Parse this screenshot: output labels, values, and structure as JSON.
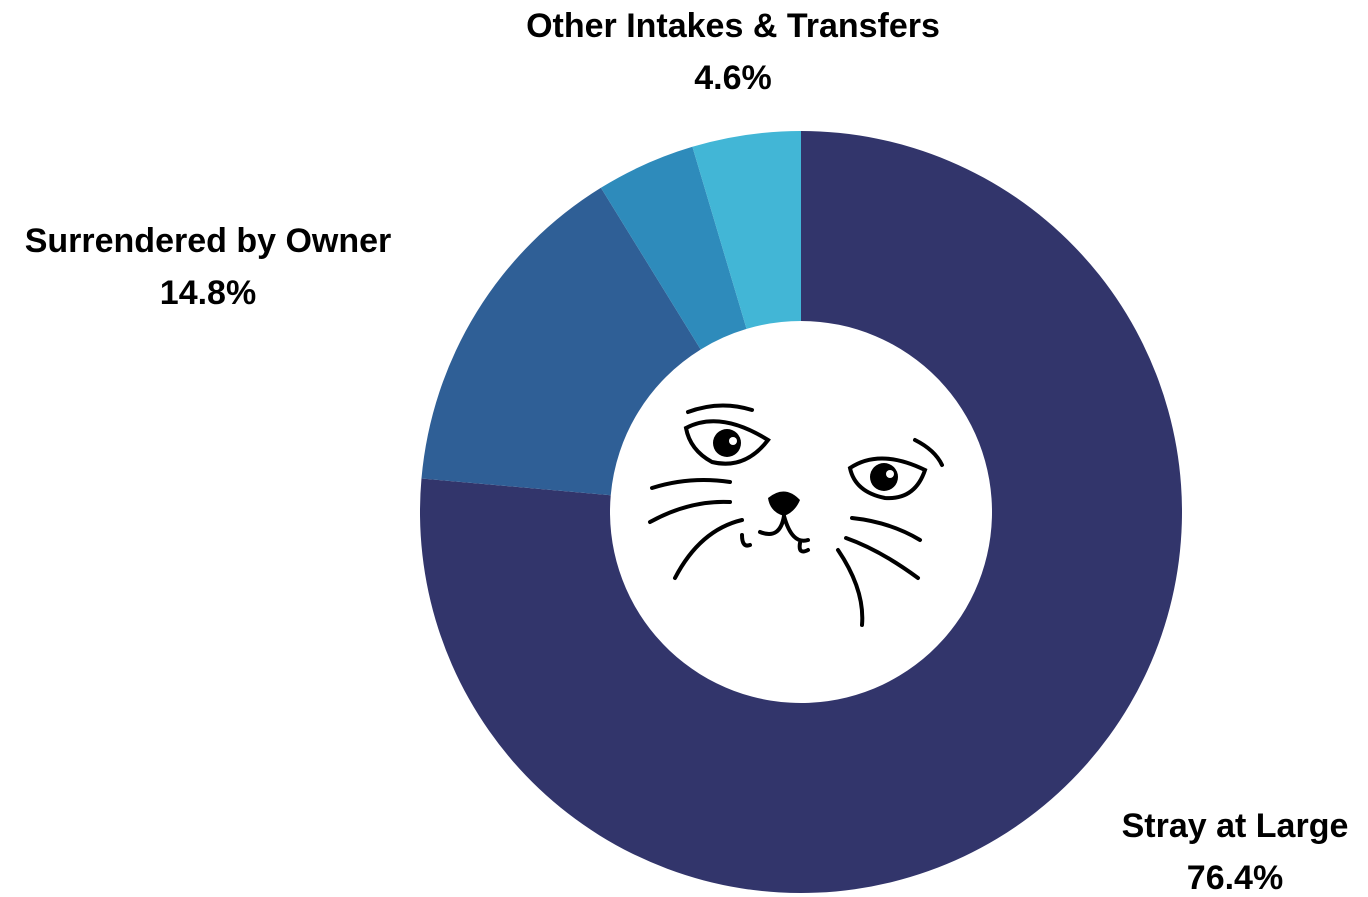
{
  "chart_data": {
    "type": "donut",
    "categories": [
      "Stray at Large",
      "Surrendered by Owner",
      null,
      "Other Intakes & Transfers"
    ],
    "values": [
      76.4,
      14.8,
      4.2,
      4.6
    ],
    "value_labels": [
      "76.4%",
      "14.8%",
      null,
      "4.6%"
    ],
    "colors": [
      "#32356b",
      "#2f5f96",
      "#2e8bbb",
      "#42b6d6"
    ]
  }
}
